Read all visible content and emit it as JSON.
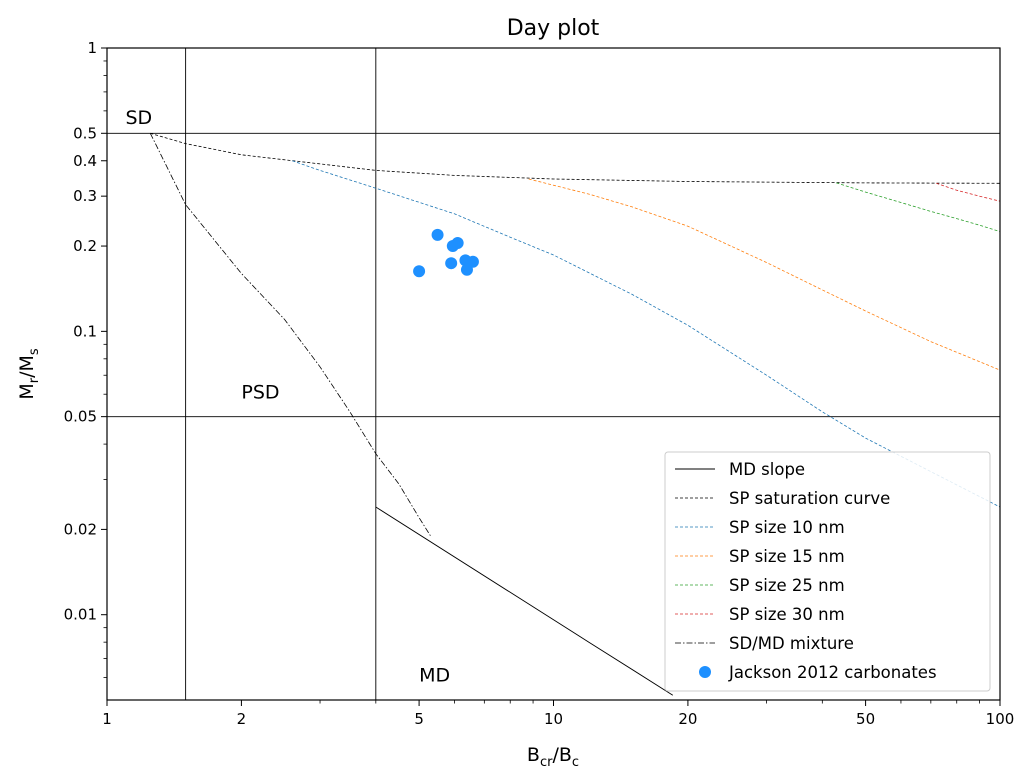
{
  "chart_data": {
    "type": "scatter",
    "title": "Day plot",
    "xlabel": "B_cr/B_c",
    "ylabel": "M_r/M_s",
    "xscale": "log",
    "yscale": "log",
    "xlim": [
      1,
      100
    ],
    "ylim": [
      0.005,
      1
    ],
    "x_ticks": [
      {
        "value": 1,
        "label": "1"
      },
      {
        "value": 2,
        "label": "2"
      },
      {
        "value": 5,
        "label": "5"
      },
      {
        "value": 10,
        "label": "10"
      },
      {
        "value": 20,
        "label": "20"
      },
      {
        "value": 50,
        "label": "50"
      },
      {
        "value": 100,
        "label": "100"
      }
    ],
    "y_ticks": [
      {
        "value": 0.01,
        "label": "0.01"
      },
      {
        "value": 0.02,
        "label": "0.02"
      },
      {
        "value": 0.05,
        "label": "0.05"
      },
      {
        "value": 0.1,
        "label": "0.1"
      },
      {
        "value": 0.2,
        "label": "0.2"
      },
      {
        "value": 0.3,
        "label": "0.3"
      },
      {
        "value": 0.4,
        "label": "0.4"
      },
      {
        "value": 0.5,
        "label": "0.5"
      },
      {
        "value": 1,
        "label": "1"
      }
    ],
    "reference_lines": {
      "vertical_x": [
        1.5,
        4
      ],
      "horizontal_y": [
        0.5,
        0.05
      ]
    },
    "region_labels": [
      {
        "text": "SD",
        "x": 1.1,
        "y": 0.54
      },
      {
        "text": "PSD",
        "x": 2.0,
        "y": 0.058
      },
      {
        "text": "MD",
        "x": 5.0,
        "y": 0.0058
      }
    ],
    "legend": {
      "position": "lower-right"
    },
    "series": [
      {
        "name": "MD slope",
        "style": "solid",
        "color": "#000000",
        "x": [
          4,
          8,
          12,
          18.5
        ],
        "y": [
          0.024,
          0.012,
          0.008,
          0.0052
        ]
      },
      {
        "name": "SP saturation curve",
        "style": "dashed",
        "color": "#000000",
        "x": [
          1.25,
          1.5,
          2,
          3,
          4,
          6,
          10,
          20,
          50,
          100
        ],
        "y": [
          0.5,
          0.46,
          0.42,
          0.39,
          0.37,
          0.355,
          0.345,
          0.338,
          0.334,
          0.333
        ]
      },
      {
        "name": "SP size 10 nm",
        "style": "dashed",
        "color": "#1f77b4",
        "x": [
          2.6,
          3,
          4,
          6,
          8,
          10,
          15,
          20,
          30,
          40,
          50,
          70,
          100
        ],
        "y": [
          0.4,
          0.37,
          0.32,
          0.26,
          0.215,
          0.186,
          0.135,
          0.105,
          0.07,
          0.052,
          0.042,
          0.032,
          0.024
        ]
      },
      {
        "name": "SP size 15 nm",
        "style": "dashed",
        "color": "#ff7f0e",
        "x": [
          8.8,
          12,
          15,
          20,
          30,
          40,
          50,
          70,
          100
        ],
        "y": [
          0.345,
          0.305,
          0.275,
          0.235,
          0.175,
          0.14,
          0.118,
          0.092,
          0.073
        ]
      },
      {
        "name": "SP size 25 nm",
        "style": "dashed",
        "color": "#2ca02c",
        "x": [
          43,
          50,
          60,
          70,
          80,
          90,
          100
        ],
        "y": [
          0.334,
          0.31,
          0.285,
          0.265,
          0.25,
          0.237,
          0.225
        ]
      },
      {
        "name": "SP size 30 nm",
        "style": "dashed",
        "color": "#d62728",
        "x": [
          72,
          80,
          90,
          100
        ],
        "y": [
          0.333,
          0.315,
          0.3,
          0.288
        ]
      },
      {
        "name": "SD/MD mixture",
        "style": "dashdot",
        "color": "#000000",
        "x": [
          1.25,
          1.5,
          2,
          2.5,
          3,
          3.5,
          4,
          4.5,
          5,
          5.3
        ],
        "y": [
          0.5,
          0.28,
          0.16,
          0.11,
          0.075,
          0.052,
          0.037,
          0.029,
          0.022,
          0.019
        ]
      },
      {
        "name": "Jackson 2012 carbonates",
        "style": "marker",
        "color": "#1e90ff",
        "x": [
          5.0,
          5.5,
          5.95,
          6.1,
          5.9,
          6.35,
          6.6,
          6.4
        ],
        "y": [
          0.163,
          0.219,
          0.2,
          0.205,
          0.174,
          0.178,
          0.176,
          0.165
        ]
      }
    ]
  }
}
